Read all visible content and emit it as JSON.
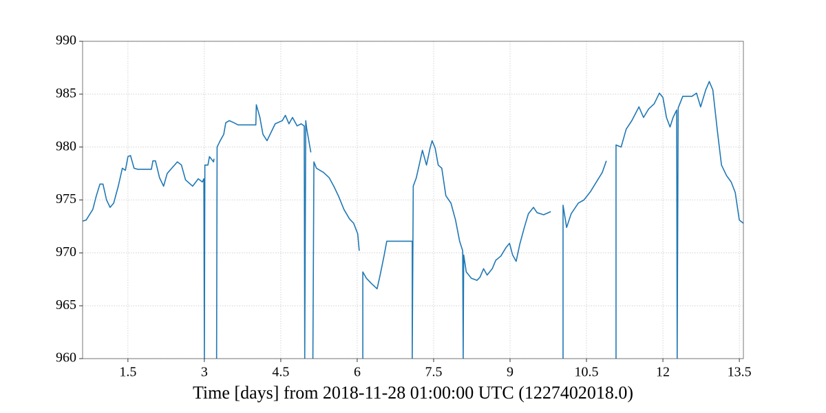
{
  "chart_data": {
    "type": "line",
    "xlabel": "Time [days] from 2018-11-28 01:00:00 UTC (1227402018.0)",
    "xlim": [
      0.61,
      13.58
    ],
    "ylim": [
      960,
      990
    ],
    "xticks": [
      1.5,
      3,
      4.5,
      6,
      7.5,
      9,
      10.5,
      12,
      13.5
    ],
    "yticks": [
      960,
      965,
      970,
      975,
      980,
      985,
      990
    ],
    "grid": true,
    "series": [
      {
        "color": "#1f77b4",
        "x": [
          0.61,
          0.68,
          0.81,
          0.88,
          0.95,
          1.01,
          1.08,
          1.15,
          1.22,
          1.31,
          1.39,
          1.45,
          1.5,
          1.55,
          1.62,
          1.69,
          1.96,
          1.99,
          2.04,
          2.12,
          2.2,
          2.27,
          2.36,
          2.47,
          2.55,
          2.63,
          2.77,
          2.88,
          2.96,
          2.99,
          3.0,
          3.01,
          3.07,
          3.1,
          3.18,
          3.19,
          null,
          3.24,
          3.25,
          3.31,
          3.38,
          3.42,
          3.49,
          3.58,
          3.66,
          3.78,
          4.01,
          4.02,
          4.09,
          4.15,
          4.23,
          4.32,
          4.39,
          4.53,
          4.59,
          4.66,
          4.73,
          4.82,
          4.9,
          4.96,
          4.97,
          4.99,
          5.01,
          5.09,
          null,
          5.13,
          5.15,
          5.2,
          5.34,
          5.45,
          5.54,
          5.63,
          5.74,
          5.85,
          5.93,
          6.01,
          6.04,
          null,
          6.11,
          6.11,
          6.18,
          6.28,
          6.39,
          6.45,
          6.53,
          6.58,
          6.69,
          7.08,
          7.08,
          7.1,
          7.16,
          7.23,
          7.28,
          7.36,
          7.43,
          7.47,
          7.53,
          7.59,
          7.66,
          7.74,
          7.84,
          7.93,
          8.01,
          8.07,
          8.08,
          8.09,
          8.14,
          8.24,
          8.35,
          8.41,
          8.48,
          8.55,
          8.65,
          8.72,
          8.82,
          8.92,
          8.99,
          9.05,
          9.12,
          9.19,
          9.28,
          9.36,
          9.46,
          9.53,
          9.66,
          9.8,
          null,
          10.04,
          10.04,
          10.11,
          10.2,
          10.34,
          10.45,
          10.58,
          10.72,
          10.81,
          10.89,
          null,
          11.08,
          11.08,
          11.18,
          11.28,
          11.39,
          11.53,
          11.62,
          11.72,
          11.83,
          11.93,
          12.0,
          12.07,
          12.14,
          12.2,
          12.27,
          12.28,
          12.3,
          12.39,
          12.57,
          12.66,
          12.74,
          12.84,
          12.91,
          12.98,
          13.07,
          13.15,
          13.25,
          13.34,
          13.42,
          13.5,
          13.58
        ],
        "values": [
          973.0,
          973.1,
          974.1,
          975.4,
          976.5,
          976.5,
          975.0,
          974.3,
          974.7,
          976.3,
          978.0,
          977.8,
          979.1,
          979.2,
          978.0,
          977.9,
          977.9,
          978.7,
          978.7,
          977.1,
          976.3,
          977.5,
          978.0,
          978.6,
          978.3,
          976.9,
          976.3,
          977.0,
          976.7,
          977.0,
          960,
          978.3,
          978.3,
          979.1,
          978.6,
          978.9,
          null,
          960,
          980.0,
          980.6,
          981.2,
          982.3,
          982.5,
          982.3,
          982.1,
          982.1,
          982.1,
          984.0,
          982.8,
          981.2,
          980.6,
          981.5,
          982.2,
          982.5,
          983.0,
          982.2,
          982.8,
          982.0,
          982.2,
          982.0,
          960,
          982.5,
          981.7,
          979.5,
          null,
          960,
          978.6,
          978.0,
          977.6,
          977.1,
          976.3,
          975.4,
          974.1,
          973.2,
          972.8,
          971.8,
          970.2,
          null,
          960,
          968.2,
          967.6,
          967.1,
          966.6,
          967.9,
          969.8,
          971.1,
          971.1,
          971.1,
          960,
          976.3,
          977.1,
          978.6,
          979.7,
          978.3,
          979.9,
          980.6,
          979.9,
          978.3,
          978.0,
          975.4,
          974.7,
          973.1,
          971.1,
          970.2,
          960,
          969.8,
          968.2,
          967.6,
          967.4,
          967.7,
          968.5,
          967.9,
          968.5,
          969.3,
          969.7,
          970.5,
          970.9,
          969.8,
          969.2,
          970.8,
          972.4,
          973.7,
          974.3,
          973.8,
          973.6,
          973.9,
          null,
          960,
          974.5,
          972.4,
          973.7,
          974.7,
          975.0,
          975.8,
          976.9,
          977.6,
          978.7,
          null,
          960,
          980.2,
          980.0,
          981.7,
          982.5,
          983.8,
          982.8,
          983.6,
          984.1,
          985.1,
          984.7,
          982.8,
          981.9,
          982.8,
          983.5,
          960,
          983.7,
          984.8,
          984.8,
          985.1,
          983.8,
          985.4,
          986.2,
          985.4,
          981.5,
          978.3,
          977.3,
          976.7,
          975.7,
          973.1,
          972.8
        ]
      }
    ]
  }
}
